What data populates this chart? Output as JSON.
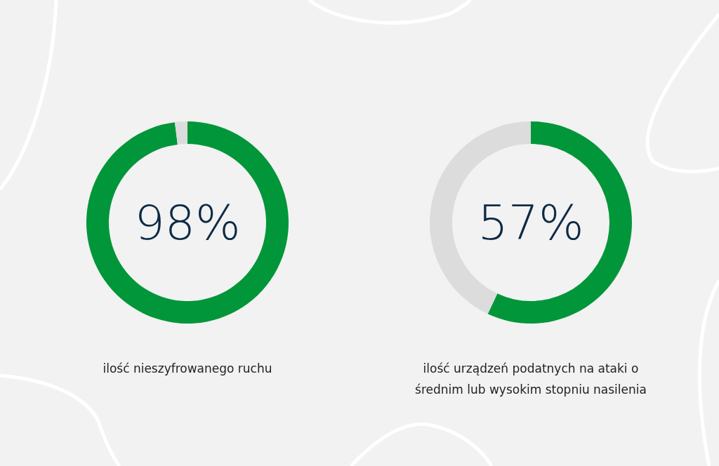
{
  "chart_data": [
    {
      "type": "donut",
      "title": "ilość nieszyfrowanego ruchu",
      "categories": [
        null,
        null
      ],
      "values": [
        98,
        2
      ],
      "colors": [
        "#009639",
        "#dcdcdc"
      ],
      "value_labels": [
        "98%",
        null
      ]
    },
    {
      "type": "donut",
      "title": "ilość urządzeń podatnych na ataki o średnim lub wysokim stopniu nasilenia",
      "categories": [
        null,
        null
      ],
      "values": [
        57,
        43
      ],
      "colors": [
        "#009639",
        "#dcdcdc"
      ],
      "value_labels": [
        "57%",
        null
      ]
    }
  ]
}
